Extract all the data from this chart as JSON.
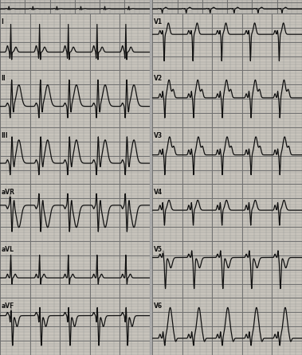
{
  "bg_color": "#a8a8a8",
  "panel_bg": "#c8c4bc",
  "grid_minor_color": "#9a9a9a",
  "grid_major_color": "#707070",
  "line_color": "#111111",
  "line_width": 0.9,
  "separator_color": "#222222",
  "leads_left": [
    "I",
    "II",
    "III",
    "aVR",
    "aVL",
    "aVF"
  ],
  "leads_right": [
    "V1",
    "V2",
    "V3",
    "V4",
    "V5",
    "V6"
  ],
  "label_fontsize": 5.5
}
